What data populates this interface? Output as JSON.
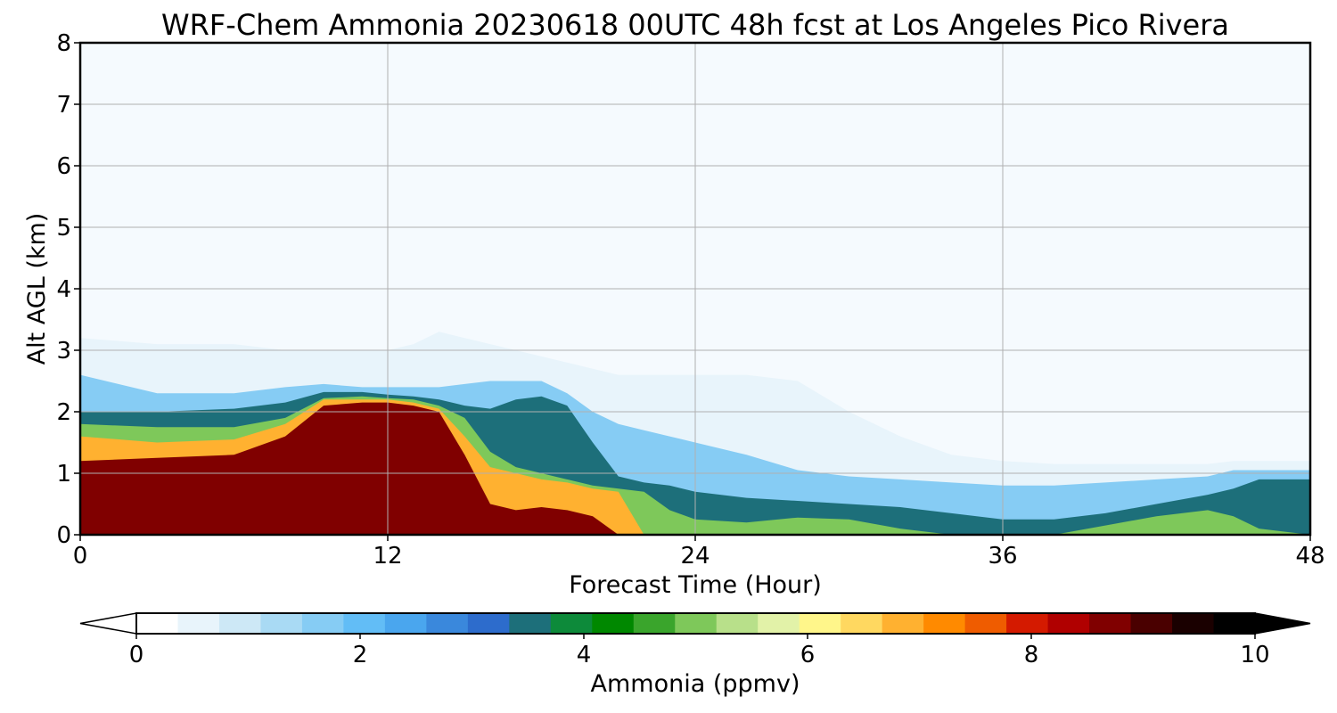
{
  "chart_data": {
    "type": "heatmap",
    "title": "WRF-Chem Ammonia  20230618 00UTC 48h fcst at Los Angeles Pico Rivera",
    "xlabel": "Forecast Time (Hour)",
    "ylabel": "Alt AGL (km)",
    "xlim": [
      0,
      48
    ],
    "ylim": [
      0,
      8
    ],
    "xticks": [
      "0",
      "12",
      "24",
      "36",
      "48"
    ],
    "yticks": [
      "0",
      "1",
      "2",
      "3",
      "4",
      "5",
      "6",
      "7",
      "8"
    ],
    "grid": true,
    "colorbar": {
      "label": "Ammonia  (ppmv)",
      "range": [
        0,
        10
      ],
      "ticks": [
        "0",
        "2",
        "4",
        "6",
        "8",
        "10"
      ],
      "extend": "both",
      "orientation": "horizontal",
      "colors": [
        "#ffffff",
        "#e8f4fb",
        "#cde8f6",
        "#a9daf4",
        "#86ccf4",
        "#62bdf6",
        "#4aa6ee",
        "#3a88dc",
        "#2d6ccc",
        "#1d6f7a",
        "#0d8a3a",
        "#008800",
        "#3aa52c",
        "#7ec85a",
        "#b8e08a",
        "#e2f2a8",
        "#fff68a",
        "#ffd860",
        "#ffb130",
        "#ff8a00",
        "#ef5c00",
        "#d41a00",
        "#b00000",
        "#800000",
        "#4a0000",
        "#1a0000",
        "#000000"
      ]
    },
    "contour_profiles": {
      "x": [
        0,
        3,
        6,
        8,
        9.5,
        11,
        12,
        13,
        14,
        15,
        16,
        17,
        18,
        19,
        20,
        21,
        22,
        23,
        24,
        26,
        28,
        30,
        32,
        34,
        36,
        38,
        40,
        42,
        44,
        45,
        46,
        48
      ],
      "levels": [
        0.3,
        1.5,
        3.5,
        5,
        7,
        9
      ],
      "tops_km": [
        [
          3.2,
          3.1,
          3.1,
          3.0,
          3.0,
          3.0,
          3.0,
          3.1,
          3.3,
          3.2,
          3.1,
          3.0,
          2.9,
          2.8,
          2.7,
          2.6,
          2.6,
          2.6,
          2.6,
          2.6,
          2.5,
          2.0,
          1.6,
          1.3,
          1.2,
          1.15,
          1.15,
          1.15,
          1.15,
          1.2,
          1.2,
          1.2
        ],
        [
          2.6,
          2.3,
          2.3,
          2.4,
          2.45,
          2.4,
          2.4,
          2.4,
          2.4,
          2.45,
          2.5,
          2.5,
          2.5,
          2.3,
          2.0,
          1.8,
          1.7,
          1.6,
          1.5,
          1.3,
          1.05,
          0.95,
          0.9,
          0.85,
          0.8,
          0.8,
          0.85,
          0.9,
          0.95,
          1.05,
          1.05,
          1.05
        ],
        [
          2.0,
          2.0,
          2.05,
          2.15,
          2.32,
          2.32,
          2.28,
          2.25,
          2.2,
          2.1,
          2.05,
          2.2,
          2.25,
          2.1,
          1.5,
          0.95,
          0.85,
          0.8,
          0.7,
          0.6,
          0.55,
          0.5,
          0.45,
          0.35,
          0.25,
          0.25,
          0.35,
          0.5,
          0.65,
          0.75,
          0.9,
          0.9
        ],
        [
          1.8,
          1.75,
          1.75,
          1.9,
          2.22,
          2.25,
          2.22,
          2.2,
          2.1,
          1.9,
          1.35,
          1.1,
          1.0,
          0.9,
          0.8,
          0.75,
          0.7,
          0.4,
          0.25,
          0.2,
          0.28,
          0.25,
          0.1,
          0.0,
          0.0,
          0.0,
          0.15,
          0.3,
          0.4,
          0.3,
          0.1,
          0.0
        ],
        [
          1.6,
          1.5,
          1.55,
          1.8,
          2.2,
          2.2,
          2.2,
          2.15,
          2.05,
          1.6,
          1.1,
          1.0,
          0.9,
          0.85,
          0.75,
          0.7,
          0.0,
          0.0,
          0.0,
          0.0,
          0.0,
          0.0,
          0.0,
          0.0,
          0.0,
          0.0,
          0.0,
          0.0,
          0.0,
          0.0,
          0.0,
          0.0
        ],
        [
          1.2,
          1.25,
          1.3,
          1.6,
          2.1,
          2.15,
          2.15,
          2.1,
          2.0,
          1.3,
          0.5,
          0.4,
          0.45,
          0.4,
          0.3,
          0.0,
          0.0,
          0.0,
          0.0,
          0.0,
          0.0,
          0.0,
          0.0,
          0.0,
          0.0,
          0.0,
          0.0,
          0.0,
          0.0,
          0.0,
          0.0,
          0.0
        ]
      ]
    }
  }
}
